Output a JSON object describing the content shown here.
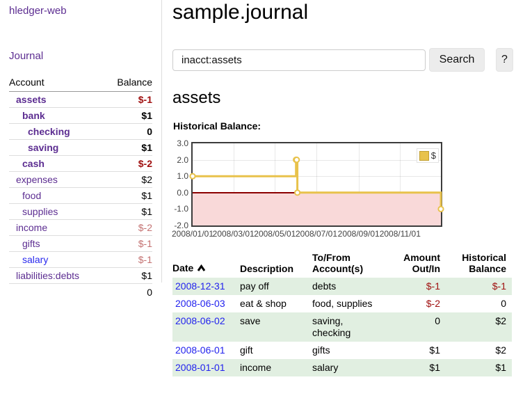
{
  "app": {
    "brand": "hledger-web"
  },
  "sidebar": {
    "nav": {
      "journal_label": "Journal"
    },
    "accounts_table": {
      "headers": {
        "account": "Account",
        "balance": "Balance"
      },
      "rows": [
        {
          "name": "assets",
          "balance": "$-1"
        },
        {
          "name": "bank",
          "balance": "$1"
        },
        {
          "name": "checking",
          "balance": "0"
        },
        {
          "name": "saving",
          "balance": "$1"
        },
        {
          "name": "cash",
          "balance": "$-2"
        },
        {
          "name": "expenses",
          "balance": "$2"
        },
        {
          "name": "food",
          "balance": "$1"
        },
        {
          "name": "supplies",
          "balance": "$1"
        },
        {
          "name": "income",
          "balance": "$-2"
        },
        {
          "name": "gifts",
          "balance": "$-1"
        },
        {
          "name": "salary",
          "balance": "$-1"
        },
        {
          "name": "liabilities:debts",
          "balance": "$1"
        }
      ],
      "total": "0"
    }
  },
  "header": {
    "title": "sample.journal"
  },
  "search": {
    "value": "inacct:assets",
    "clear_icon": "✕",
    "search_label": "Search",
    "help_label": "?"
  },
  "account_page": {
    "title": "assets",
    "chart_label": "Historical Balance:"
  },
  "chart_data": {
    "type": "line",
    "style": "step",
    "title": "Historical Balance:",
    "series": [
      {
        "name": "$",
        "color": "#e8c24b",
        "points": [
          [
            "2008-01-01",
            1
          ],
          [
            "2008-06-01",
            2
          ],
          [
            "2008-06-02",
            2
          ],
          [
            "2008-06-03",
            0
          ],
          [
            "2008-12-31",
            -1
          ]
        ]
      }
    ],
    "x_range": [
      "2008-01-01",
      "2008-12-31"
    ],
    "ylim": [
      -2,
      3
    ],
    "x_ticks": [
      "2008/01/01",
      "2008/03/01",
      "2008/05/01",
      "2008/07/01",
      "2008/09/01",
      "2008/11/01"
    ],
    "y_ticks": [
      3.0,
      2.0,
      1.0,
      0.0,
      -1.0,
      -2.0
    ],
    "grid": "on",
    "negative_region_color": "#f9d9d9",
    "zero_line_color": "#8b0000",
    "legend": {
      "label": "$",
      "position": "top-right"
    }
  },
  "register_table": {
    "headers": {
      "date": "Date",
      "description": "Description",
      "account": "To/From Account(s)",
      "amount": "Amount Out/In",
      "balance": "Historical Balance"
    },
    "rows": [
      {
        "date": "2008-12-31",
        "description": "pay off",
        "accounts": "debts",
        "amount": "$-1",
        "balance": "$-1"
      },
      {
        "date": "2008-06-03",
        "description": "eat & shop",
        "accounts": "food, supplies",
        "amount": "$-2",
        "balance": "0"
      },
      {
        "date": "2008-06-02",
        "description": "save",
        "accounts": "saving, checking",
        "amount": "0",
        "balance": "$2"
      },
      {
        "date": "2008-06-01",
        "description": "gift",
        "accounts": "gifts",
        "amount": "$1",
        "balance": "$2"
      },
      {
        "date": "2008-01-01",
        "description": "income",
        "accounts": "salary",
        "amount": "$1",
        "balance": "$1"
      }
    ]
  }
}
